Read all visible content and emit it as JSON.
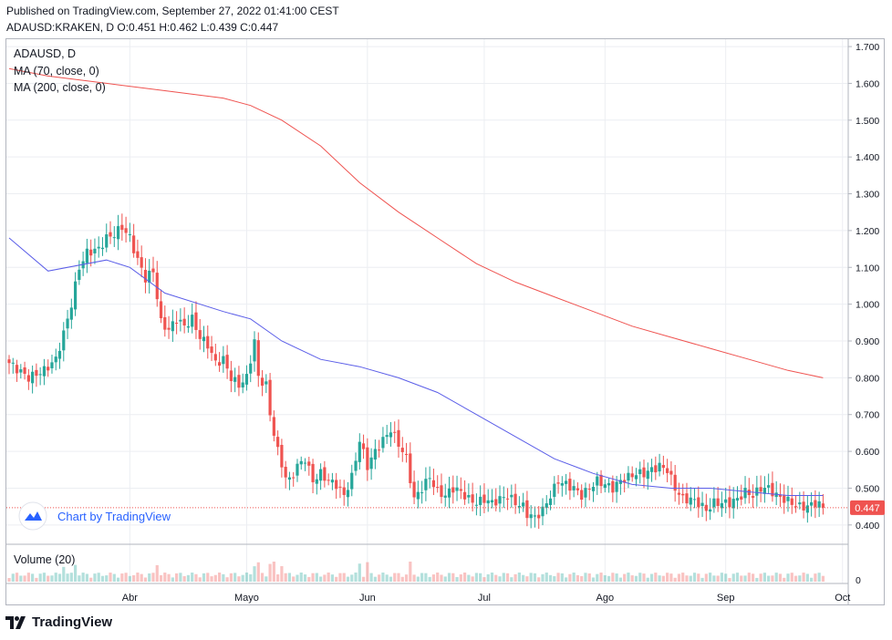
{
  "header": {
    "published": "Published on TradingView.com, September 27, 2022 01:41:00 CEST",
    "ohlc": "ADAUSD:KRAKEN, D  O:0.451 H:0.462 L:0.439 C:0.447"
  },
  "legend": {
    "symbol": "ADAUSD, D",
    "ma70": "MA (70, close, 0)",
    "ma200": "MA (200, close, 0)",
    "volume": "Volume (20)"
  },
  "watermark": {
    "text": "Chart by TradingView"
  },
  "footer": {
    "brand": "TradingView"
  },
  "colors": {
    "up": "#26a69a",
    "down": "#ef5350",
    "ma70": "#5b5ee8",
    "ma200": "#ef5350",
    "last_price_bg": "#ef5350",
    "grid": "#eceef2"
  },
  "chart_data": {
    "type": "candlestick",
    "symbol": "ADAUSD",
    "interval": "D",
    "last_price": "0.447",
    "last_price_value": 0.447,
    "ylim": [
      0.35,
      1.72
    ],
    "y_ticks": [
      "0.400",
      "0.500",
      "0.600",
      "0.700",
      "0.800",
      "0.900",
      "1.000",
      "1.100",
      "1.200",
      "1.300",
      "1.400",
      "1.500",
      "1.600",
      "1.700"
    ],
    "volume_axis_label": "0",
    "x_ticks": [
      "Abr",
      "Mayo",
      "Jun",
      "Jul",
      "Ago",
      "Sep",
      "Oct"
    ],
    "x_tick_dates": [
      "2022-04-01",
      "2022-05-01",
      "2022-06-01",
      "2022-07-01",
      "2022-08-01",
      "2022-09-01",
      "2022-10-01"
    ],
    "start_date": "2022-03-01",
    "end_date": "2022-09-26",
    "anchors_close": [
      [
        0,
        0.84
      ],
      [
        5,
        0.8
      ],
      [
        9,
        0.82
      ],
      [
        12,
        0.85
      ],
      [
        14,
        0.92
      ],
      [
        16,
        1.0
      ],
      [
        18,
        1.1
      ],
      [
        20,
        1.14
      ],
      [
        23,
        1.15
      ],
      [
        25,
        1.18
      ],
      [
        27,
        1.19
      ],
      [
        29,
        1.21
      ],
      [
        31,
        1.18
      ],
      [
        33,
        1.12
      ],
      [
        35,
        1.07
      ],
      [
        37,
        1.09
      ],
      [
        39,
        0.95
      ],
      [
        41,
        0.93
      ],
      [
        43,
        0.96
      ],
      [
        45,
        0.94
      ],
      [
        47,
        0.96
      ],
      [
        49,
        0.91
      ],
      [
        51,
        0.89
      ],
      [
        53,
        0.84
      ],
      [
        55,
        0.85
      ],
      [
        57,
        0.8
      ],
      [
        59,
        0.78
      ],
      [
        61,
        0.8
      ],
      [
        63,
        0.9
      ],
      [
        64,
        0.8
      ],
      [
        66,
        0.78
      ],
      [
        67,
        0.7
      ],
      [
        69,
        0.6
      ],
      [
        71,
        0.53
      ],
      [
        72,
        0.52
      ],
      [
        74,
        0.56
      ],
      [
        76,
        0.58
      ],
      [
        78,
        0.52
      ],
      [
        80,
        0.54
      ],
      [
        82,
        0.52
      ],
      [
        84,
        0.51
      ],
      [
        86,
        0.48
      ],
      [
        88,
        0.53
      ],
      [
        90,
        0.63
      ],
      [
        92,
        0.56
      ],
      [
        94,
        0.6
      ],
      [
        96,
        0.63
      ],
      [
        98,
        0.66
      ],
      [
        100,
        0.62
      ],
      [
        102,
        0.58
      ],
      [
        104,
        0.47
      ],
      [
        106,
        0.5
      ],
      [
        108,
        0.53
      ],
      [
        110,
        0.49
      ],
      [
        112,
        0.48
      ],
      [
        114,
        0.5
      ],
      [
        116,
        0.49
      ],
      [
        118,
        0.47
      ],
      [
        120,
        0.46
      ],
      [
        122,
        0.47
      ],
      [
        124,
        0.46
      ],
      [
        126,
        0.47
      ],
      [
        128,
        0.48
      ],
      [
        130,
        0.46
      ],
      [
        132,
        0.45
      ],
      [
        133,
        0.43
      ],
      [
        135,
        0.42
      ],
      [
        137,
        0.44
      ],
      [
        139,
        0.48
      ],
      [
        141,
        0.52
      ],
      [
        143,
        0.51
      ],
      [
        145,
        0.5
      ],
      [
        147,
        0.48
      ],
      [
        149,
        0.5
      ],
      [
        151,
        0.52
      ],
      [
        153,
        0.51
      ],
      [
        155,
        0.5
      ],
      [
        157,
        0.52
      ],
      [
        159,
        0.53
      ],
      [
        161,
        0.54
      ],
      [
        163,
        0.54
      ],
      [
        165,
        0.55
      ],
      [
        167,
        0.56
      ],
      [
        169,
        0.55
      ],
      [
        171,
        0.5
      ],
      [
        173,
        0.47
      ],
      [
        175,
        0.47
      ],
      [
        177,
        0.46
      ],
      [
        179,
        0.44
      ],
      [
        181,
        0.46
      ],
      [
        183,
        0.46
      ],
      [
        185,
        0.46
      ],
      [
        187,
        0.47
      ],
      [
        189,
        0.49
      ],
      [
        191,
        0.48
      ],
      [
        193,
        0.5
      ],
      [
        195,
        0.5
      ],
      [
        197,
        0.48
      ],
      [
        199,
        0.47
      ],
      [
        201,
        0.46
      ],
      [
        203,
        0.45
      ],
      [
        205,
        0.45
      ],
      [
        207,
        0.46
      ],
      [
        209,
        0.45
      ]
    ],
    "series": [
      {
        "name": "MA (70, close, 0)",
        "points": [
          [
            0,
            1.18
          ],
          [
            10,
            1.09
          ],
          [
            25,
            1.12
          ],
          [
            31,
            1.1
          ],
          [
            40,
            1.03
          ],
          [
            55,
            0.98
          ],
          [
            62,
            0.96
          ],
          [
            70,
            0.9
          ],
          [
            80,
            0.85
          ],
          [
            90,
            0.83
          ],
          [
            100,
            0.8
          ],
          [
            110,
            0.76
          ],
          [
            120,
            0.7
          ],
          [
            130,
            0.64
          ],
          [
            140,
            0.58
          ],
          [
            150,
            0.54
          ],
          [
            160,
            0.51
          ],
          [
            170,
            0.5
          ],
          [
            180,
            0.5
          ],
          [
            190,
            0.49
          ],
          [
            200,
            0.48
          ],
          [
            209,
            0.48
          ]
        ]
      },
      {
        "name": "MA (200, close, 0)",
        "points": [
          [
            0,
            1.64
          ],
          [
            10,
            1.62
          ],
          [
            25,
            1.6
          ],
          [
            40,
            1.58
          ],
          [
            55,
            1.56
          ],
          [
            62,
            1.54
          ],
          [
            70,
            1.5
          ],
          [
            80,
            1.43
          ],
          [
            90,
            1.33
          ],
          [
            100,
            1.25
          ],
          [
            110,
            1.18
          ],
          [
            120,
            1.11
          ],
          [
            130,
            1.06
          ],
          [
            140,
            1.02
          ],
          [
            150,
            0.98
          ],
          [
            160,
            0.94
          ],
          [
            170,
            0.91
          ],
          [
            180,
            0.88
          ],
          [
            190,
            0.85
          ],
          [
            200,
            0.82
          ],
          [
            209,
            0.8
          ]
        ]
      }
    ]
  }
}
